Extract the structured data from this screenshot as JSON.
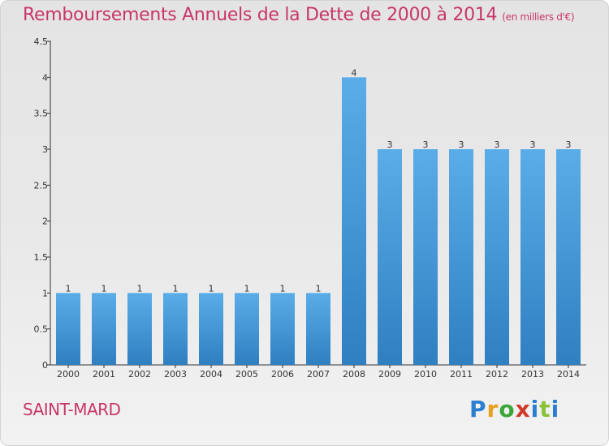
{
  "header": {
    "title": "Remboursements Annuels de la Dette de 2000 à 2014",
    "unit": "(en milliers d'€)"
  },
  "footer": {
    "town": "SAINT-MARD",
    "logo_letters": [
      "P",
      "r",
      "o",
      "x",
      "i",
      "t",
      "i"
    ]
  },
  "colors": {
    "bar_top": "#5aade8",
    "bar_bottom": "#2f7fc1",
    "title": "#c8366a",
    "axis": "#333333"
  },
  "chart_data": {
    "type": "bar",
    "title": "Remboursements Annuels de la Dette de 2000 à 2014",
    "subtitle": "(en milliers d'€)",
    "xlabel": "",
    "ylabel": "",
    "categories": [
      "2000",
      "2001",
      "2002",
      "2003",
      "2004",
      "2005",
      "2006",
      "2007",
      "2008",
      "2009",
      "2010",
      "2011",
      "2012",
      "2013",
      "2014"
    ],
    "values": [
      1,
      1,
      1,
      1,
      1,
      1,
      1,
      1,
      4,
      3,
      3,
      3,
      3,
      3,
      3
    ],
    "data_labels": [
      "1",
      "1",
      "1",
      "1",
      "1",
      "1",
      "1",
      "1",
      "4",
      "3",
      "3",
      "3",
      "3",
      "3",
      "3"
    ],
    "ylim": [
      0,
      4.5
    ],
    "yticks": [
      0,
      0.5,
      1,
      1.5,
      2,
      2.5,
      3,
      3.5,
      4,
      4.5
    ],
    "ytick_labels": [
      "0",
      "0.5",
      "1",
      "1.5",
      "2",
      "2.5",
      "3",
      "3.5",
      "4",
      "4.5"
    ],
    "grid": false,
    "legend": "none"
  }
}
